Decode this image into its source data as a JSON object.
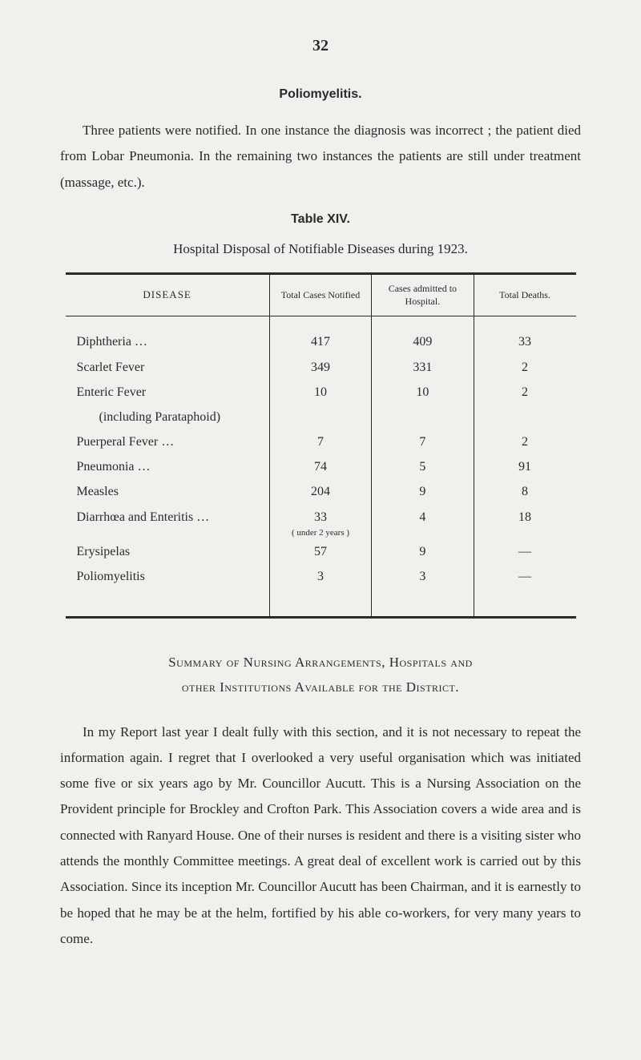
{
  "page_number": "32",
  "section1": {
    "heading": "Poliomyelitis.",
    "paragraph": "Three patients were notified. In one instance the diagnosis was incorrect ; the patient died from Lobar Pneumonia. In the remaining two instances the patients are still under treatment (massage, etc.)."
  },
  "table": {
    "number": "Table XIV.",
    "caption": "Hospital Disposal of Notifiable Diseases during 1923.",
    "headers": [
      "DISEASE",
      "Total Cases Notified",
      "Cases admitted to Hospital.",
      "Total Deaths."
    ],
    "rows": [
      {
        "disease": "Diphtheria …",
        "notified": "417",
        "admitted": "409",
        "deaths": "33"
      },
      {
        "disease": "Scarlet Fever",
        "notified": "349",
        "admitted": "331",
        "deaths": "2"
      },
      {
        "disease": "Enteric Fever",
        "notified": "10",
        "admitted": "10",
        "deaths": "2"
      },
      {
        "disease_sub": "(including Parataphoid)",
        "notified": "",
        "admitted": "",
        "deaths": ""
      },
      {
        "disease": "Puerperal Fever …",
        "notified": "7",
        "admitted": "7",
        "deaths": "2"
      },
      {
        "disease": "Pneumonia …",
        "notified": "74",
        "admitted": "5",
        "deaths": "91"
      },
      {
        "disease": "Measles",
        "notified": "204",
        "admitted": "9",
        "deaths": "8"
      },
      {
        "disease": "Diarrhœa and Enteritis …",
        "notified": "33",
        "sub_note": "( under 2 years )",
        "admitted": "4",
        "deaths": "18"
      },
      {
        "disease": "Erysipelas",
        "notified": "57",
        "admitted": "9",
        "deaths": "—"
      },
      {
        "disease": "Poliomyelitis",
        "notified": "3",
        "admitted": "3",
        "deaths": "—"
      }
    ],
    "colors": {
      "border": "#2a2a2a",
      "background": "#f0f0ed",
      "text": "#2a2a2a"
    },
    "header_fontsize": 12,
    "body_fontsize": 16
  },
  "section2": {
    "heading_line1": "Summary of Nursing Arrangements, Hospitals and",
    "heading_line2": "other Institutions Available for the District.",
    "paragraph": "In my Report last year I dealt fully with this section, and it is not necessary to repeat the information again. I regret that I overlooked a very useful organisation which was initiated some five or six years ago by Mr. Councillor Aucutt. This is a Nursing Association on the Provident principle for Brockley and Crofton Park. This Association covers a wide area and is connected with Ranyard House. One of their nurses is resident and there is a visiting sister who attends the monthly Committee meetings. A great deal of excellent work is carried out by this Association. Since its inception Mr. Councillor Aucutt has been Chairman, and it is earnestly to be hoped that he may be at the helm, fortified by his able co-workers, for very many years to come."
  }
}
